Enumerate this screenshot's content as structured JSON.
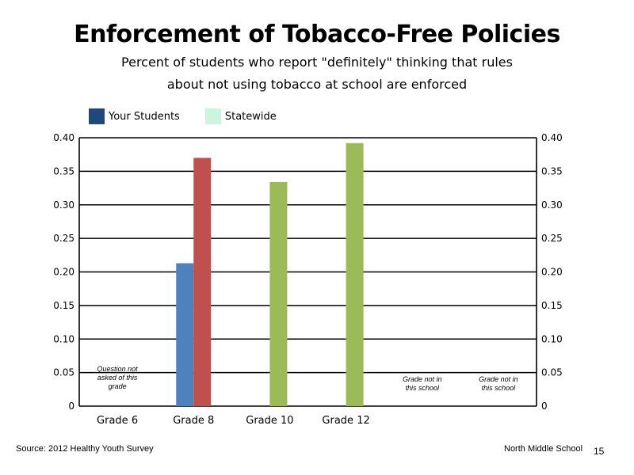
{
  "title": "Enforcement of Tobacco-Free Policies",
  "subtitle_line1": "Percent of students who report \"definitely\" thinking that rules",
  "subtitle_line2": "about not using tobacco at school are enforced",
  "legend": [
    {
      "label": "Your Students",
      "color": "#1f497d"
    },
    {
      "label": "Statewide",
      "color": "#ccf5dd"
    }
  ],
  "footer": {
    "source": "Source: 2012 Healthy Youth Survey",
    "school": "North Middle  School",
    "page_number": "15"
  },
  "chart_data": {
    "type": "bar",
    "categories": [
      "Grade 6",
      "Grade 8",
      "Grade 10",
      "Grade 12",
      "",
      ""
    ],
    "series": [
      {
        "name": "Your Students",
        "values": [
          null,
          0.213,
          null,
          null,
          null,
          null
        ],
        "color": "#4f81bd"
      },
      {
        "name": "Statewide",
        "values": [
          null,
          0.37,
          0.334,
          0.392,
          null,
          null
        ],
        "colors": [
          "",
          "#c0504d",
          "#9bbb59",
          "#9bbb59",
          "",
          ""
        ]
      }
    ],
    "ylim": [
      0,
      0.4
    ],
    "yticks": [
      "0",
      "0.05",
      "0.10",
      "0.15",
      "0.20",
      "0.25",
      "0.30",
      "0.35",
      "0.40"
    ],
    "grid": true,
    "annotations": [
      {
        "category_index": 0,
        "lines": [
          "Question not",
          "asked of this",
          "grade"
        ]
      },
      {
        "category_index": 4,
        "lines": [
          "Grade not in",
          "this school"
        ]
      },
      {
        "category_index": 5,
        "lines": [
          "Grade not in",
          "this school"
        ]
      }
    ]
  }
}
